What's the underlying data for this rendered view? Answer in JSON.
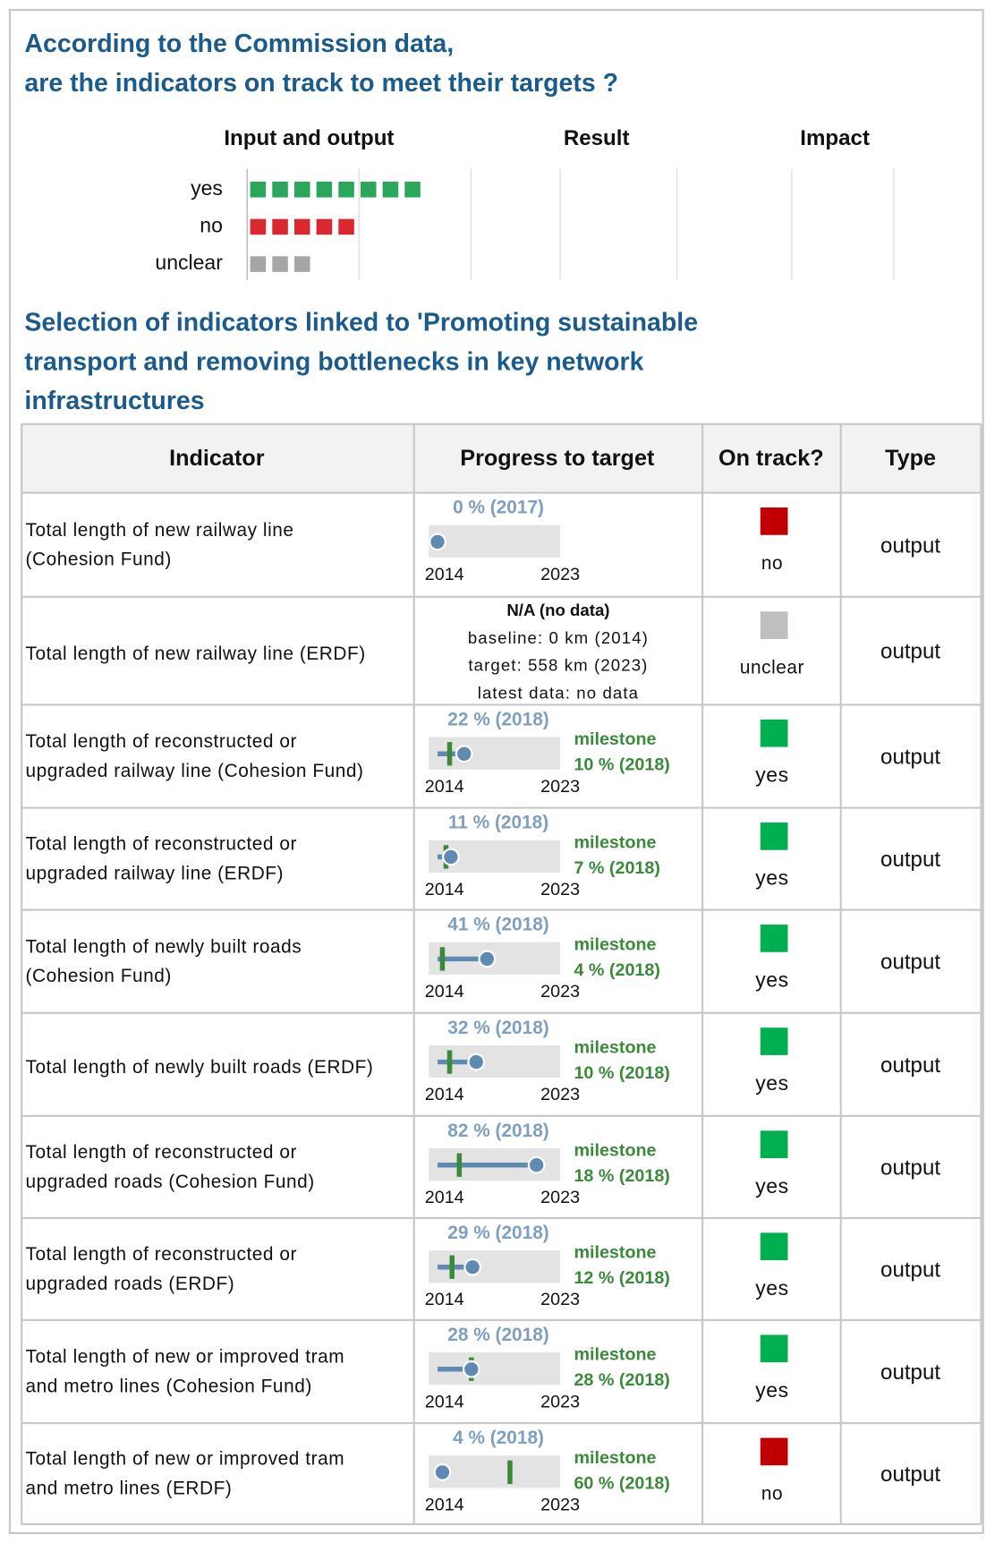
{
  "overview": {
    "title": [
      "According to the Commission data,",
      "are the indicators on track to meet their targets ?"
    ],
    "columns": [
      "Input and output",
      "Result",
      "Impact"
    ],
    "categories": [
      "yes",
      "no",
      "unclear"
    ],
    "counts": [
      8,
      5,
      3
    ],
    "colors": [
      "#2aa75a",
      "#d9282f",
      "#a6a6a6"
    ]
  },
  "section_title": [
    "Selection of indicators linked to 'Promoting sustainable",
    "transport and removing bottlenecks in key network",
    "infrastructures"
  ],
  "table": {
    "headers": [
      "Indicator",
      "Progress to target",
      "On track?",
      "Type"
    ],
    "axis_labels": [
      "2014",
      "2023"
    ],
    "xlim": [
      0,
      100
    ],
    "milestone_word": "milestone",
    "status_colors": {
      "yes": "#00b050",
      "no": "#c00000",
      "unclear": "#bfbfbf"
    },
    "rows": [
      {
        "indicator": [
          "Total length of new railway line",
          "(Cohesion Fund)"
        ],
        "progress": 0,
        "progress_label": "0 % (2017)",
        "status": "no",
        "type": "output"
      },
      {
        "indicator": [
          "Total length of new railway line (ERDF)"
        ],
        "notes": [
          "N/A (no data)",
          "baseline: 0 km (2014)",
          "target: 558 km (2023)",
          "latest data: no data"
        ],
        "status": "unclear",
        "type": "output"
      },
      {
        "indicator": [
          "Total length of reconstructed or",
          "upgraded railway line (Cohesion Fund)"
        ],
        "progress": 22,
        "progress_label": "22 % (2018)",
        "milestone": 10,
        "milestone_label": "10 % (2018)",
        "status": "yes",
        "type": "output"
      },
      {
        "indicator": [
          "Total length of reconstructed or",
          "upgraded railway line (ERDF)"
        ],
        "progress": 11,
        "progress_label": "11 % (2018)",
        "milestone": 7,
        "milestone_label": "7 % (2018)",
        "status": "yes",
        "type": "output"
      },
      {
        "indicator": [
          "Total length of newly built roads",
          "(Cohesion Fund)"
        ],
        "progress": 41,
        "progress_label": "41 % (2018)",
        "milestone": 4,
        "milestone_label": "4 % (2018)",
        "status": "yes",
        "type": "output"
      },
      {
        "indicator": [
          "Total length of newly built roads (ERDF)"
        ],
        "progress": 32,
        "progress_label": "32 % (2018)",
        "milestone": 10,
        "milestone_label": "10 % (2018)",
        "status": "yes",
        "type": "output"
      },
      {
        "indicator": [
          "Total length of reconstructed or",
          "upgraded roads (Cohesion Fund)"
        ],
        "progress": 82,
        "progress_label": "82 % (2018)",
        "milestone": 18,
        "milestone_label": "18 % (2018)",
        "status": "yes",
        "type": "output"
      },
      {
        "indicator": [
          "Total length of reconstructed or",
          "upgraded roads (ERDF)"
        ],
        "progress": 29,
        "progress_label": "29 % (2018)",
        "milestone": 12,
        "milestone_label": "12 % (2018)",
        "status": "yes",
        "type": "output"
      },
      {
        "indicator": [
          "Total length of new or improved tram",
          "and metro lines (Cohesion Fund)"
        ],
        "progress": 28,
        "progress_label": "28 % (2018)",
        "milestone": 28,
        "milestone_label": "28 % (2018)",
        "status": "yes",
        "type": "output"
      },
      {
        "indicator": [
          "Total length of new or improved tram",
          "and metro lines (ERDF)"
        ],
        "progress": 4,
        "progress_label": "4 % (2018)",
        "milestone": 60,
        "milestone_label": "60 % (2018)",
        "status": "no",
        "type": "output"
      }
    ]
  }
}
